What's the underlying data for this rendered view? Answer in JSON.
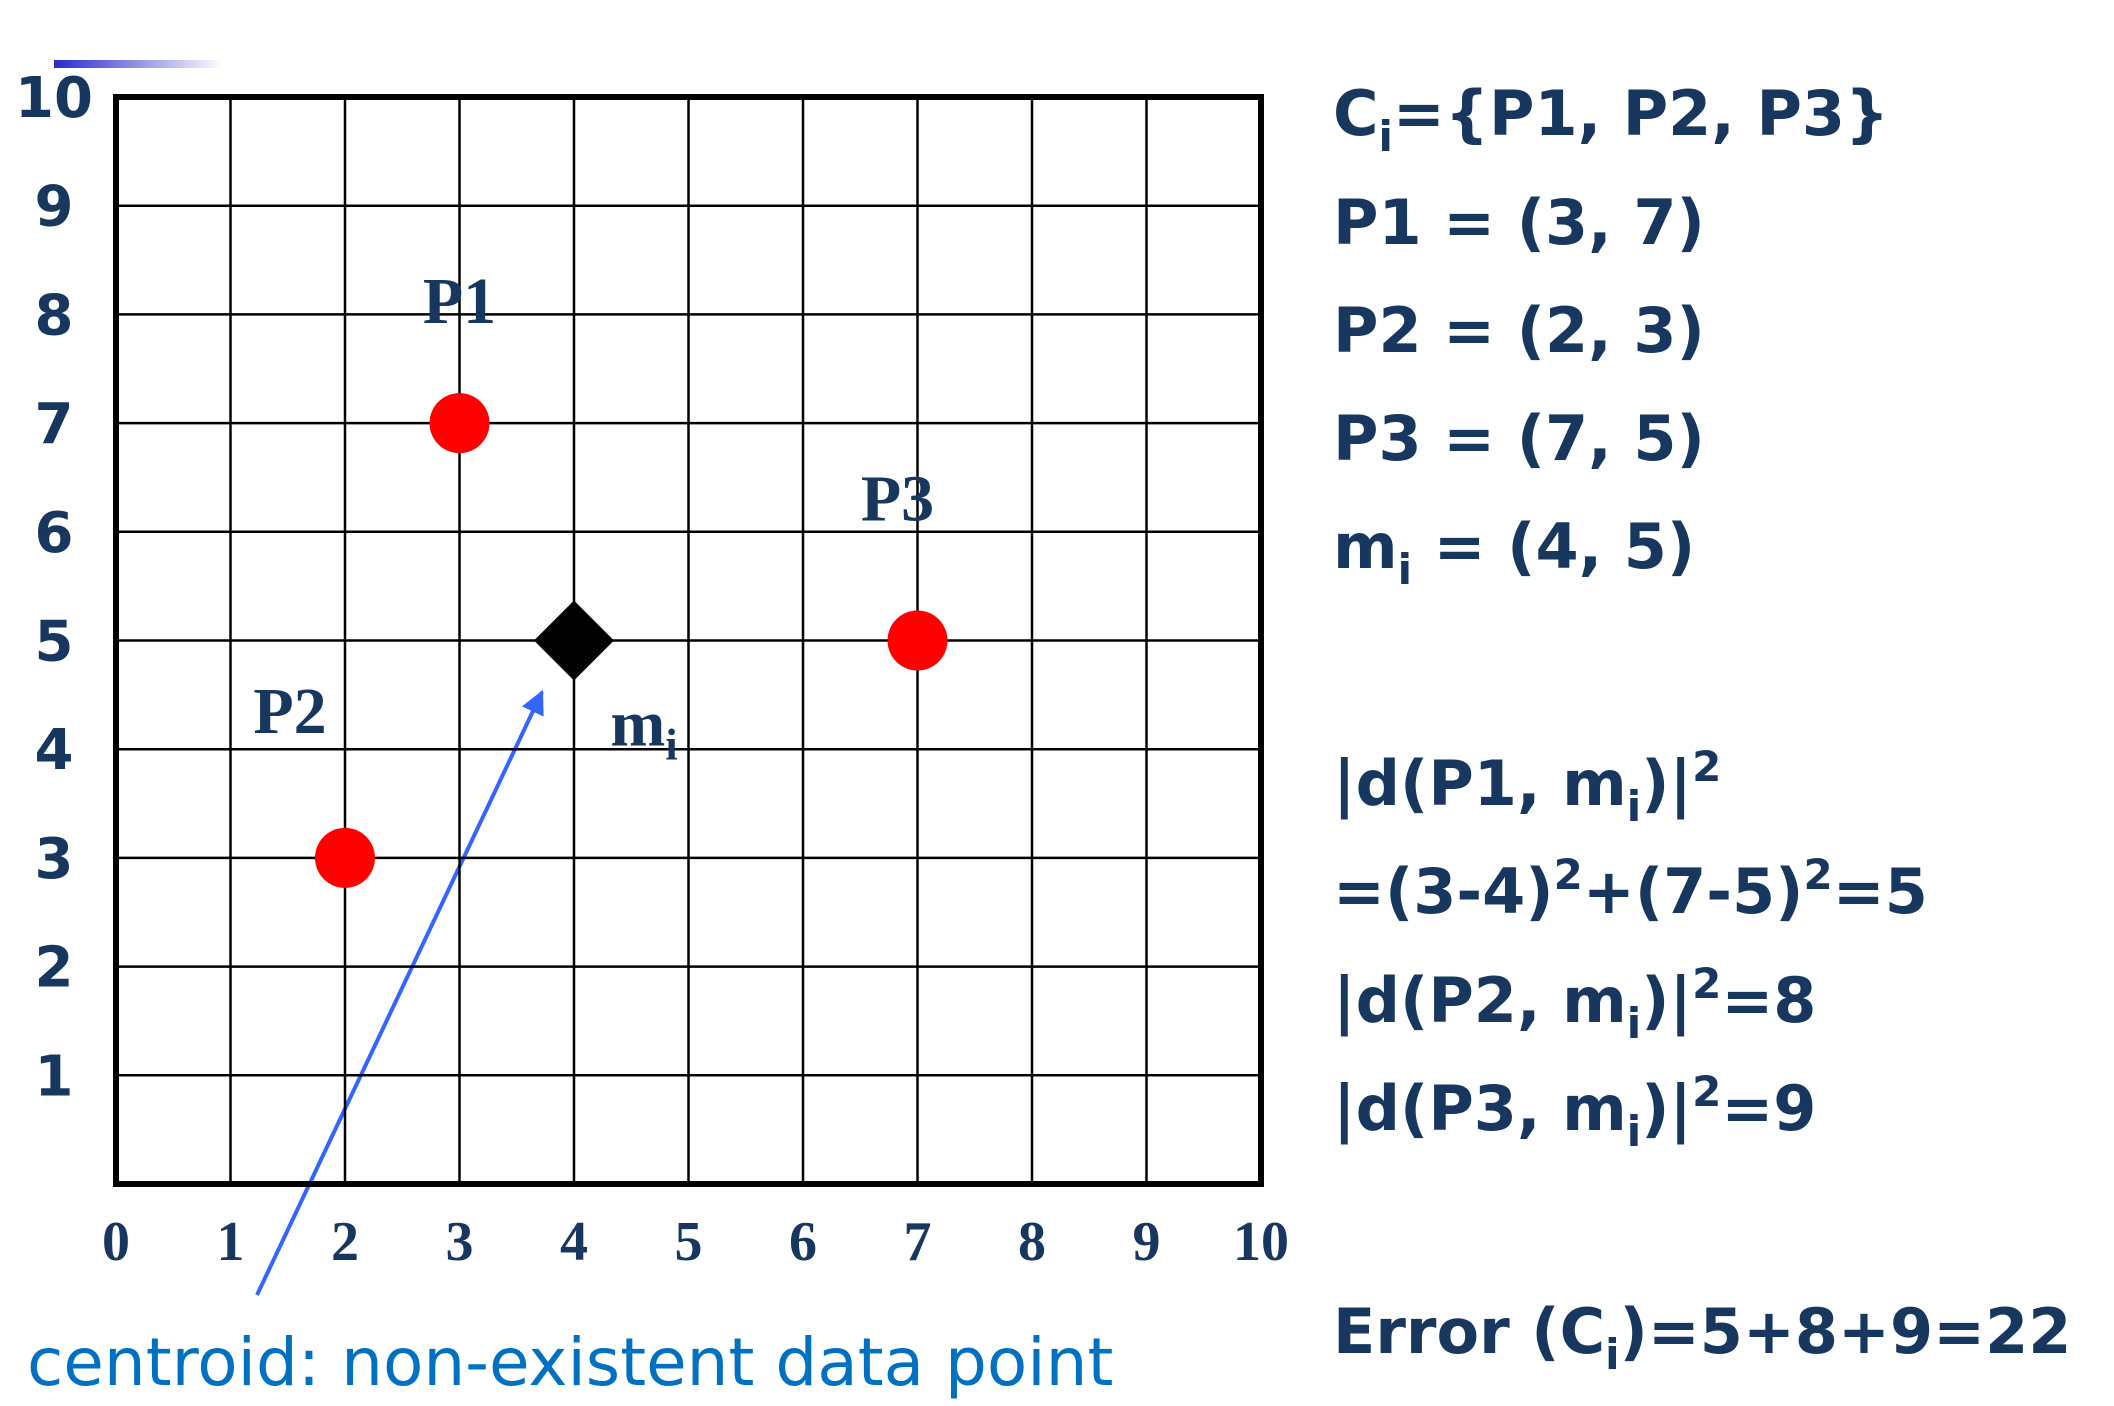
{
  "chart_data": {
    "type": "scatter",
    "xlim": [
      0,
      10
    ],
    "ylim": [
      0,
      10
    ],
    "xticks": [
      0,
      1,
      2,
      3,
      4,
      5,
      6,
      7,
      8,
      9,
      10
    ],
    "yticks": [
      1,
      2,
      3,
      4,
      5,
      6,
      7,
      8,
      9,
      10
    ],
    "grid": true,
    "series": [
      {
        "marker": "circle",
        "color": "#ff0000",
        "labels": [
          "P1",
          "P2",
          "P3"
        ],
        "x": [
          3,
          2,
          7
        ],
        "y": [
          7,
          3,
          5
        ]
      },
      {
        "marker": "diamond",
        "color": "#000000",
        "labels": [
          "m"
        ],
        "label_subs": [
          "i"
        ],
        "x": [
          4
        ],
        "y": [
          5
        ]
      }
    ],
    "annotation": "centroid: non-existent data point"
  },
  "notes": [
    [
      {
        "t": "C"
      },
      {
        "sub": "i"
      },
      {
        "t": "={P1, P2, P3}"
      }
    ],
    [
      {
        "t": "P1 = (3, 7)"
      }
    ],
    [
      {
        "t": "P2 = (2, 3)"
      }
    ],
    [
      {
        "t": "P3 = (7, 5)"
      }
    ],
    [
      {
        "t": "m"
      },
      {
        "sub": "i"
      },
      {
        "t": " = (4, 5)"
      }
    ],
    [
      {
        "t": "|d(P1, m"
      },
      {
        "sub": "i"
      },
      {
        "t": ")|"
      },
      {
        "sup": "2"
      }
    ],
    [
      {
        "t": "=(3-4)"
      },
      {
        "sup": "2"
      },
      {
        "t": "+(7-5)"
      },
      {
        "sup": "2"
      },
      {
        "t": "=5"
      }
    ],
    [
      {
        "t": "|d(P2, m"
      },
      {
        "sub": "i"
      },
      {
        "t": ")|"
      },
      {
        "sup": "2"
      },
      {
        "t": "=8"
      }
    ],
    [
      {
        "t": "|d(P3, m"
      },
      {
        "sub": "i"
      },
      {
        "t": ")|"
      },
      {
        "sup": "2"
      },
      {
        "t": "=9"
      }
    ],
    [
      {
        "t": "Error (C"
      },
      {
        "sub": "i"
      },
      {
        "t": ")=5+8+9=22"
      }
    ]
  ]
}
